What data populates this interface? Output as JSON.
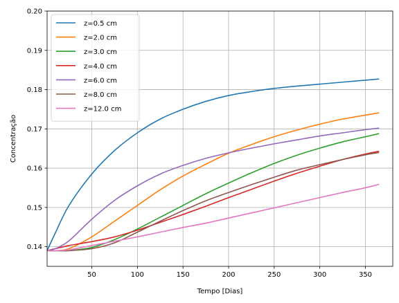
{
  "chart_data": {
    "type": "line",
    "title": "",
    "xlabel": "Tempo [Dias]",
    "ylabel": "Concentração",
    "xlim": [
      1,
      380
    ],
    "ylim": [
      0.135,
      0.2
    ],
    "xticks": [
      50,
      100,
      150,
      200,
      250,
      300,
      350
    ],
    "yticks": [
      0.14,
      0.15,
      0.16,
      0.17,
      0.18,
      0.19,
      0.2
    ],
    "xtick_labels": [
      "50",
      "100",
      "150",
      "200",
      "250",
      "300",
      "350"
    ],
    "ytick_labels": [
      "0.14",
      "0.15",
      "0.16",
      "0.17",
      "0.18",
      "0.19",
      "0.20"
    ],
    "grid": true,
    "legend_position": "upper-left",
    "x": [
      1,
      10,
      25,
      50,
      75,
      100,
      125,
      150,
      175,
      200,
      225,
      250,
      275,
      300,
      325,
      350,
      365
    ],
    "series": [
      {
        "name": "z=0.5 cm",
        "color": "#1f77b4",
        "values": [
          0.139,
          0.1435,
          0.1505,
          0.1585,
          0.1645,
          0.169,
          0.1725,
          0.175,
          0.177,
          0.1785,
          0.1795,
          0.1803,
          0.1809,
          0.1814,
          0.1819,
          0.1824,
          0.1827
        ]
      },
      {
        "name": "z=2.0 cm",
        "color": "#ff7f0e",
        "values": [
          0.139,
          0.139,
          0.1395,
          0.1425,
          0.1465,
          0.1505,
          0.1545,
          0.158,
          0.161,
          0.1638,
          0.166,
          0.168,
          0.1697,
          0.1712,
          0.1725,
          0.1735,
          0.1741
        ]
      },
      {
        "name": "z=3.0 cm",
        "color": "#2ca02c",
        "values": [
          0.139,
          0.139,
          0.139,
          0.1398,
          0.1418,
          0.1445,
          0.1475,
          0.1505,
          0.1535,
          0.1562,
          0.1588,
          0.1612,
          0.1633,
          0.1651,
          0.1667,
          0.168,
          0.1688
        ]
      },
      {
        "name": "z=4.0 cm",
        "color": "#d62728",
        "values": [
          0.139,
          0.1395,
          0.1403,
          0.1413,
          0.1425,
          0.1442,
          0.1462,
          0.1482,
          0.1503,
          0.1525,
          0.1546,
          0.1567,
          0.1587,
          0.1605,
          0.1622,
          0.1636,
          0.1643
        ]
      },
      {
        "name": "z=6.0 cm",
        "color": "#9467bd",
        "values": [
          0.139,
          0.1395,
          0.1415,
          0.147,
          0.1518,
          0.1555,
          0.1585,
          0.1607,
          0.1625,
          0.1639,
          0.1651,
          0.1662,
          0.1672,
          0.1682,
          0.169,
          0.1698,
          0.1702
        ]
      },
      {
        "name": "z=8.0 cm",
        "color": "#8c564b",
        "values": [
          0.139,
          0.139,
          0.139,
          0.1395,
          0.141,
          0.1437,
          0.1465,
          0.1492,
          0.1517,
          0.1538,
          0.1558,
          0.1577,
          0.1595,
          0.1609,
          0.1622,
          0.1634,
          0.164
        ]
      },
      {
        "name": "z=12.0 cm",
        "color": "#e377c2",
        "values": [
          0.139,
          0.139,
          0.1392,
          0.1403,
          0.1414,
          0.1425,
          0.1437,
          0.1449,
          0.146,
          0.1473,
          0.1486,
          0.1499,
          0.1512,
          0.1525,
          0.1538,
          0.155,
          0.1559
        ]
      }
    ]
  }
}
